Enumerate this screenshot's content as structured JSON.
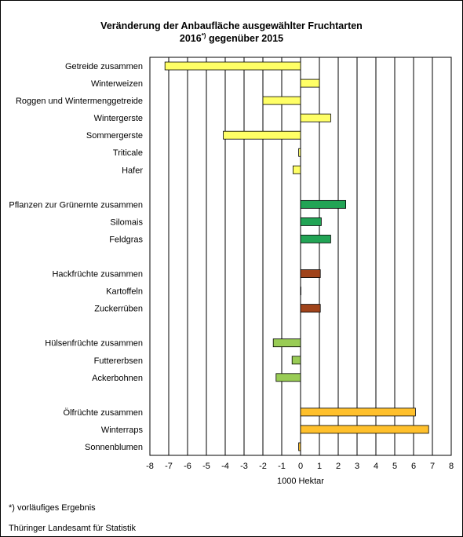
{
  "chart_data": {
    "type": "bar",
    "orientation": "horizontal",
    "title": "Veränderung der Anbaufläche ausgewählter Fruchtarten",
    "subtitle_prefix": "2016",
    "subtitle_sup": "*)",
    "subtitle_suffix": " gegenüber 2015",
    "xlabel": "1000 Hektar",
    "xlim": [
      -8,
      8
    ],
    "xticks": [
      "-8",
      "-7",
      "-6",
      "-5",
      "-4",
      "-3",
      "-2",
      "-1",
      "0",
      "1",
      "2",
      "3",
      "4",
      "5",
      "6",
      "7",
      "8"
    ],
    "grid": "vertical",
    "colors": {
      "cereals": "#ffff66",
      "green": "#22a455",
      "root": "#a0431a",
      "pulses": "#99cc55",
      "oil": "#ffc02c"
    },
    "categories": [
      {
        "label": "Getreide zusammen",
        "value": -7.2,
        "group": "cereals"
      },
      {
        "label": "Winterweizen",
        "value": 1.0,
        "group": "cereals"
      },
      {
        "label": "Roggen und Wintermenggetreide",
        "value": -2.0,
        "group": "cereals"
      },
      {
        "label": "Wintergerste",
        "value": 1.6,
        "group": "cereals"
      },
      {
        "label": "Sommergerste",
        "value": -4.1,
        "group": "cereals"
      },
      {
        "label": "Triticale",
        "value": -0.1,
        "group": "cereals"
      },
      {
        "label": "Hafer",
        "value": -0.4,
        "group": "cereals"
      },
      {
        "label": "",
        "value": null,
        "group": null
      },
      {
        "label": "Pflanzen zur Grünernte zusammen",
        "value": 2.4,
        "group": "green"
      },
      {
        "label": "Silomais",
        "value": 1.1,
        "group": "green"
      },
      {
        "label": "Feldgras",
        "value": 1.6,
        "group": "green"
      },
      {
        "label": "",
        "value": null,
        "group": null
      },
      {
        "label": "Hackfrüchte zusammen",
        "value": 1.05,
        "group": "root"
      },
      {
        "label": "Kartoffeln",
        "value": 0.0,
        "group": "root"
      },
      {
        "label": "Zuckerrüben",
        "value": 1.05,
        "group": "root"
      },
      {
        "label": "",
        "value": null,
        "group": null
      },
      {
        "label": "Hülsenfrüchte zusammen",
        "value": -1.45,
        "group": "pulses"
      },
      {
        "label": "Futtererbsen",
        "value": -0.45,
        "group": "pulses"
      },
      {
        "label": "Ackerbohnen",
        "value": -1.3,
        "group": "pulses"
      },
      {
        "label": "",
        "value": null,
        "group": null
      },
      {
        "label": "Ölfrüchte zusammen",
        "value": 6.1,
        "group": "oil"
      },
      {
        "label": "Winterraps",
        "value": 6.8,
        "group": "oil"
      },
      {
        "label": "Sonnenblumen",
        "value": -0.1,
        "group": "oil"
      }
    ]
  },
  "footnote": "*) vorläufiges Ergebnis",
  "source": "Thüringer Landesamt für Statistik"
}
